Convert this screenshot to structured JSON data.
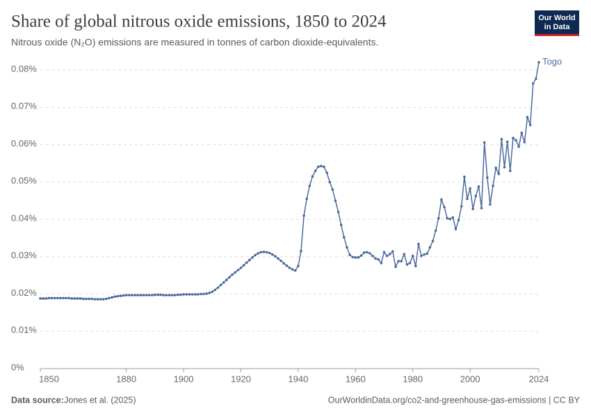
{
  "chart_data": {
    "type": "line",
    "title": "Share of global nitrous oxide emissions, 1850 to 2024",
    "subtitle": "Nitrous oxide (N₂O) emissions are measured in tonnes of carbon dioxide-equivalents.",
    "source_label": "Data source:",
    "source": "Jones et al. (2025)",
    "url": "OurWorldinData.org/co2-and-greenhouse-gas-emissions | CC BY",
    "logo": [
      "Our World",
      "in Data"
    ],
    "x": [
      1850,
      1851,
      1852,
      1853,
      1854,
      1855,
      1856,
      1857,
      1858,
      1859,
      1860,
      1861,
      1862,
      1863,
      1864,
      1865,
      1866,
      1867,
      1868,
      1869,
      1870,
      1871,
      1872,
      1873,
      1874,
      1875,
      1876,
      1877,
      1878,
      1879,
      1880,
      1881,
      1882,
      1883,
      1884,
      1885,
      1886,
      1887,
      1888,
      1889,
      1890,
      1891,
      1892,
      1893,
      1894,
      1895,
      1896,
      1897,
      1898,
      1899,
      1900,
      1901,
      1902,
      1903,
      1904,
      1905,
      1906,
      1907,
      1908,
      1909,
      1910,
      1911,
      1912,
      1913,
      1914,
      1915,
      1916,
      1917,
      1918,
      1919,
      1920,
      1921,
      1922,
      1923,
      1924,
      1925,
      1926,
      1927,
      1928,
      1929,
      1930,
      1931,
      1932,
      1933,
      1934,
      1935,
      1936,
      1937,
      1938,
      1939,
      1940,
      1941,
      1942,
      1943,
      1944,
      1945,
      1946,
      1947,
      1948,
      1949,
      1950,
      1951,
      1952,
      1953,
      1954,
      1955,
      1956,
      1957,
      1958,
      1959,
      1960,
      1961,
      1962,
      1963,
      1964,
      1965,
      1966,
      1967,
      1968,
      1969,
      1970,
      1971,
      1972,
      1973,
      1974,
      1975,
      1976,
      1977,
      1978,
      1979,
      1980,
      1981,
      1982,
      1983,
      1984,
      1985,
      1986,
      1987,
      1988,
      1989,
      1990,
      1991,
      1992,
      1993,
      1994,
      1995,
      1996,
      1997,
      1998,
      1999,
      2000,
      2001,
      2002,
      2003,
      2004,
      2005,
      2006,
      2007,
      2008,
      2009,
      2010,
      2011,
      2012,
      2013,
      2014,
      2015,
      2016,
      2017,
      2018,
      2019,
      2020,
      2021,
      2022,
      2023,
      2024
    ],
    "series": [
      {
        "name": "Togo",
        "color": "#4c6a9c",
        "values": [
          0.0188,
          0.0188,
          0.0188,
          0.0189,
          0.0189,
          0.0189,
          0.0189,
          0.0189,
          0.0189,
          0.0189,
          0.0189,
          0.0188,
          0.0188,
          0.0188,
          0.0188,
          0.0187,
          0.0187,
          0.0187,
          0.0187,
          0.0186,
          0.0186,
          0.0186,
          0.0186,
          0.0187,
          0.0189,
          0.0191,
          0.0193,
          0.0194,
          0.0195,
          0.0196,
          0.0197,
          0.0197,
          0.0197,
          0.0197,
          0.0197,
          0.0197,
          0.0197,
          0.0197,
          0.0197,
          0.0197,
          0.0198,
          0.0198,
          0.0198,
          0.0197,
          0.0197,
          0.0197,
          0.0197,
          0.0197,
          0.0198,
          0.0198,
          0.0199,
          0.0199,
          0.0199,
          0.0199,
          0.0199,
          0.0199,
          0.02,
          0.02,
          0.0201,
          0.0203,
          0.0206,
          0.0211,
          0.0217,
          0.0224,
          0.0231,
          0.0238,
          0.0245,
          0.0252,
          0.0258,
          0.0264,
          0.027,
          0.0277,
          0.0284,
          0.0291,
          0.0298,
          0.0304,
          0.0309,
          0.0312,
          0.0313,
          0.0312,
          0.031,
          0.0306,
          0.0301,
          0.0295,
          0.0289,
          0.0282,
          0.0276,
          0.027,
          0.0266,
          0.0263,
          0.0275,
          0.0315,
          0.041,
          0.0455,
          0.049,
          0.0515,
          0.053,
          0.0541,
          0.0543,
          0.0541,
          0.0525,
          0.05,
          0.048,
          0.045,
          0.042,
          0.0385,
          0.0352,
          0.0325,
          0.0305,
          0.0299,
          0.0298,
          0.0298,
          0.0303,
          0.0311,
          0.0312,
          0.0309,
          0.0302,
          0.0295,
          0.0293,
          0.0283,
          0.0312,
          0.0302,
          0.0307,
          0.0314,
          0.0273,
          0.0288,
          0.0288,
          0.0307,
          0.0279,
          0.0283,
          0.0302,
          0.0275,
          0.0334,
          0.0302,
          0.0306,
          0.0308,
          0.0325,
          0.0342,
          0.037,
          0.0403,
          0.0453,
          0.0433,
          0.0403,
          0.0401,
          0.0405,
          0.0374,
          0.0398,
          0.0435,
          0.0514,
          0.0455,
          0.0483,
          0.0428,
          0.0463,
          0.0488,
          0.043,
          0.0606,
          0.0512,
          0.044,
          0.049,
          0.0538,
          0.0522,
          0.0615,
          0.054,
          0.0608,
          0.053,
          0.0618,
          0.0612,
          0.0595,
          0.0632,
          0.0607,
          0.0674,
          0.0653,
          0.0764,
          0.0777,
          0.0821
        ]
      }
    ],
    "xlim": [
      1850,
      2024
    ],
    "xticks": [
      1850,
      1880,
      1900,
      1920,
      1940,
      1960,
      1980,
      2000,
      2024
    ],
    "ylim": [
      0,
      0.08
    ],
    "yticks": [
      {
        "value": 0,
        "label": "0%"
      },
      {
        "value": 0.01,
        "label": "0.01%"
      },
      {
        "value": 0.02,
        "label": "0.02%"
      },
      {
        "value": 0.03,
        "label": "0.03%"
      },
      {
        "value": 0.04,
        "label": "0.04%"
      },
      {
        "value": 0.05,
        "label": "0.05%"
      },
      {
        "value": 0.06,
        "label": "0.06%"
      },
      {
        "value": 0.07,
        "label": "0.07%"
      },
      {
        "value": 0.08,
        "label": "0.08%"
      }
    ],
    "grid": true
  }
}
